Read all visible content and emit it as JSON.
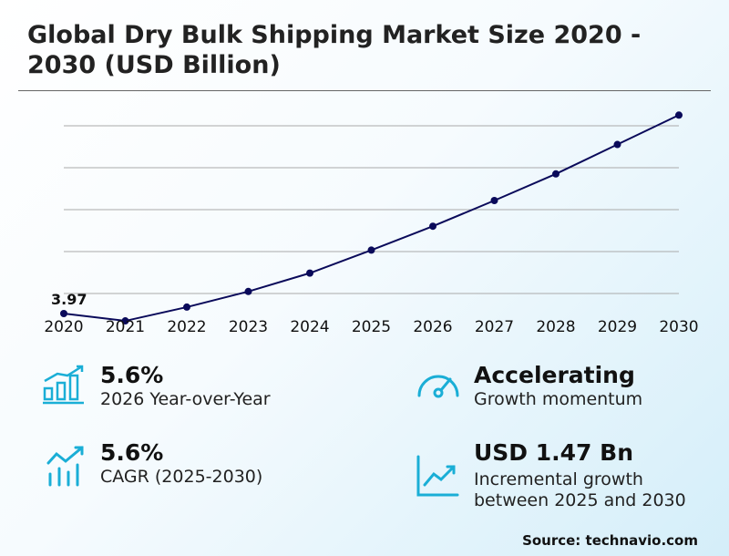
{
  "title": "Global Dry Bulk Shipping Market Size 2020 - 2030 (USD Billion)",
  "chart_data": {
    "type": "line",
    "categories": [
      "2020",
      "2021",
      "2022",
      "2023",
      "2024",
      "2025",
      "2026",
      "2027",
      "2028",
      "2029",
      "2030"
    ],
    "values": [
      3.97,
      3.89,
      4.04,
      4.21,
      4.41,
      4.66,
      4.92,
      5.2,
      5.49,
      5.81,
      6.13
    ],
    "data_labels": [
      {
        "index": 0,
        "text": "3.97"
      }
    ],
    "ylim": [
      3.95,
      6.47
    ],
    "grid": true,
    "line_color": "#0a0a5a",
    "xlabel": "",
    "ylabel": ""
  },
  "kpis": [
    {
      "value": "5.6%",
      "label": "2026 Year-over-Year",
      "icon": "bar-chart-growth-icon"
    },
    {
      "value": "Accelerating",
      "label": "Growth momentum",
      "icon": "speedometer-icon"
    },
    {
      "value": "5.6%",
      "label": "CAGR (2025-2030)",
      "icon": "trend-bars-icon"
    },
    {
      "value": "USD 1.47 Bn",
      "label": "Incremental growth between 2025 and 2030",
      "icon": "line-chart-up-icon"
    }
  ],
  "accent_color": "#1aaed6",
  "source": "Source: technavio.com"
}
